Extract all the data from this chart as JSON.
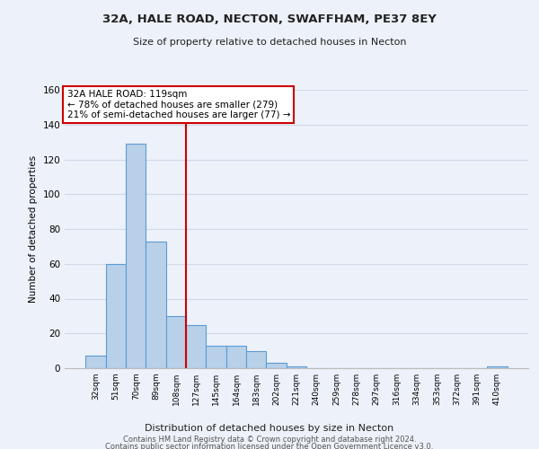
{
  "title": "32A, HALE ROAD, NECTON, SWAFFHAM, PE37 8EY",
  "subtitle": "Size of property relative to detached houses in Necton",
  "xlabel": "Distribution of detached houses by size in Necton",
  "ylabel": "Number of detached properties",
  "bar_values": [
    7,
    60,
    129,
    73,
    30,
    25,
    13,
    13,
    10,
    3,
    1,
    0,
    0,
    0,
    0,
    0,
    0,
    0,
    0,
    0,
    1
  ],
  "bin_labels": [
    "32sqm",
    "51sqm",
    "70sqm",
    "89sqm",
    "108sqm",
    "127sqm",
    "145sqm",
    "164sqm",
    "183sqm",
    "202sqm",
    "221sqm",
    "240sqm",
    "259sqm",
    "278sqm",
    "297sqm",
    "316sqm",
    "334sqm",
    "353sqm",
    "372sqm",
    "391sqm",
    "410sqm"
  ],
  "bar_color": "#b8d0e8",
  "bar_edge_color": "#5b9bd5",
  "vline_x_idx": 4.5,
  "vline_color": "#cc0000",
  "annotation_text": "32A HALE ROAD: 119sqm\n← 78% of detached houses are smaller (279)\n21% of semi-detached houses are larger (77) →",
  "annotation_box_color": "#ffffff",
  "annotation_box_edge": "#cc0000",
  "ylim": [
    0,
    160
  ],
  "yticks": [
    0,
    20,
    40,
    60,
    80,
    100,
    120,
    140,
    160
  ],
  "bg_color": "#edf1f9",
  "grid_color": "#d0d8e8",
  "footer_line1": "Contains HM Land Registry data © Crown copyright and database right 2024.",
  "footer_line2": "Contains public sector information licensed under the Open Government Licence v3.0."
}
